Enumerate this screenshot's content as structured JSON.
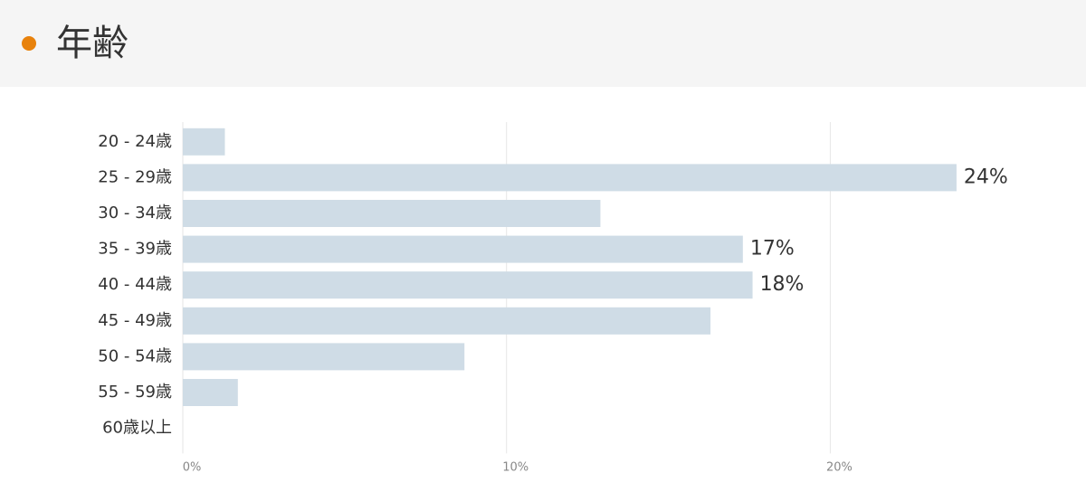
{
  "header": {
    "title": "年齢"
  },
  "chart_data": {
    "type": "bar",
    "orientation": "horizontal",
    "categories": [
      "20 - 24歳",
      "25 - 29歳",
      "30 - 34歳",
      "35 - 39歳",
      "40 - 44歳",
      "45 - 49歳",
      "50 - 54歳",
      "55 - 59歳",
      "60歳以上"
    ],
    "values": [
      1.3,
      23.9,
      12.9,
      17.3,
      17.6,
      16.3,
      8.7,
      1.7,
      0
    ],
    "value_labels": [
      null,
      "24%",
      null,
      "17%",
      "18%",
      null,
      null,
      null,
      null
    ],
    "color": "#cfdce6",
    "xlim": [
      0,
      27.9
    ],
    "xticks": [
      {
        "value": 0,
        "label": "0%"
      },
      {
        "value": 10,
        "label": "10%"
      },
      {
        "value": 20,
        "label": "20%"
      }
    ],
    "grid": true
  }
}
